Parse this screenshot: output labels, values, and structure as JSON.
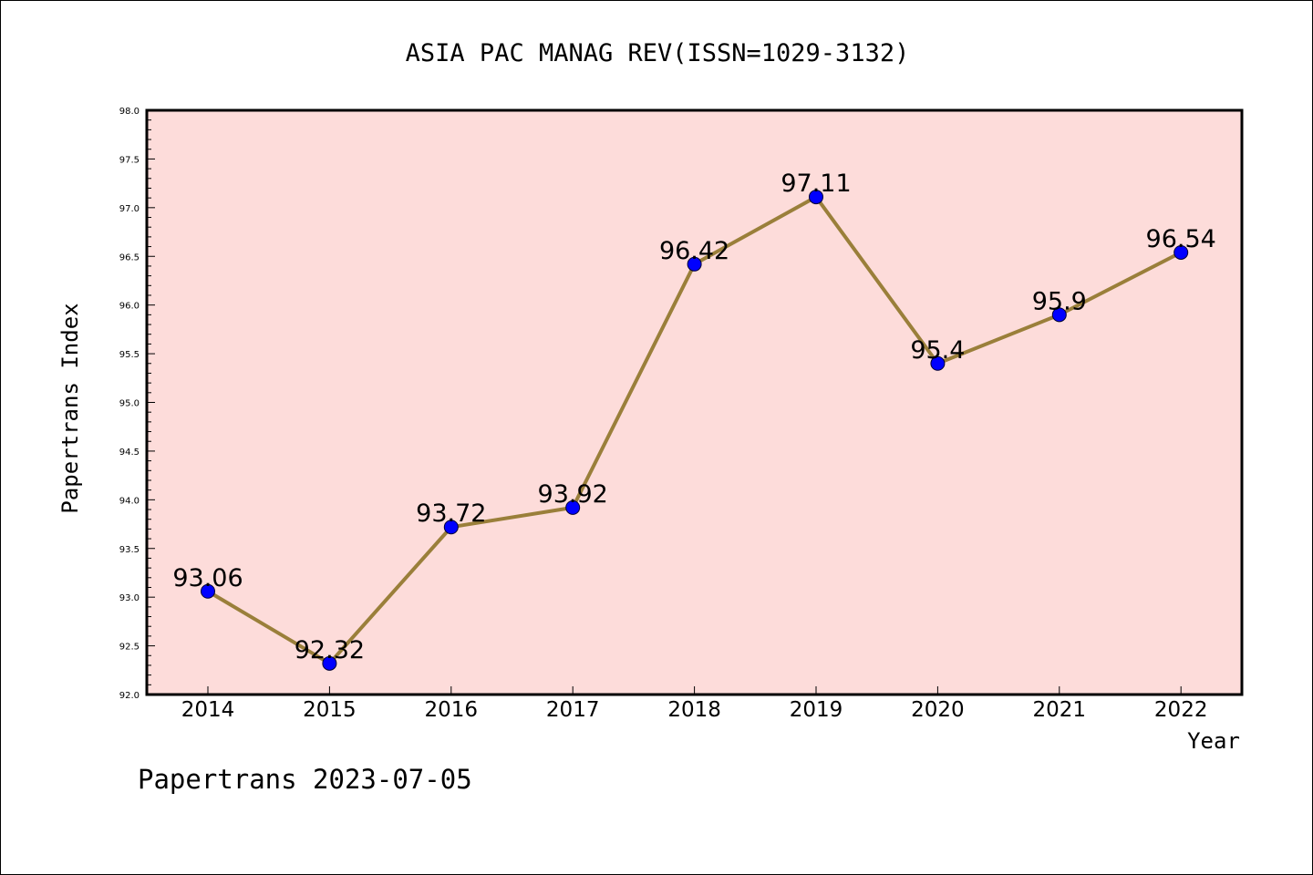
{
  "chart_data": {
    "type": "line",
    "title": "ASIA PAC MANAG REV(ISSN=1029-3132)",
    "xlabel": "Year",
    "ylabel": "Papertrans Index",
    "footer": "Papertrans 2023-07-05",
    "categories": [
      "2014",
      "2015",
      "2016",
      "2017",
      "2018",
      "2019",
      "2020",
      "2021",
      "2022"
    ],
    "values": [
      93.06,
      92.32,
      93.72,
      93.92,
      96.42,
      97.11,
      95.4,
      95.9,
      96.54
    ],
    "data_labels": [
      "93.06",
      "92.32",
      "93.72",
      "93.92",
      "96.42",
      "97.11",
      "95.4",
      "95.9",
      "96.54"
    ],
    "ylim": [
      92.0,
      98.0
    ],
    "y_ticks": [
      "92.0",
      "92.5",
      "93.0",
      "93.5",
      "94.0",
      "94.5",
      "95.0",
      "95.5",
      "96.0",
      "96.5",
      "97.0",
      "97.5",
      "98.0"
    ],
    "grid": false,
    "colors": {
      "plot_background": "#fddcda",
      "line": "#9a7f3a",
      "marker": "#0000ff"
    }
  }
}
